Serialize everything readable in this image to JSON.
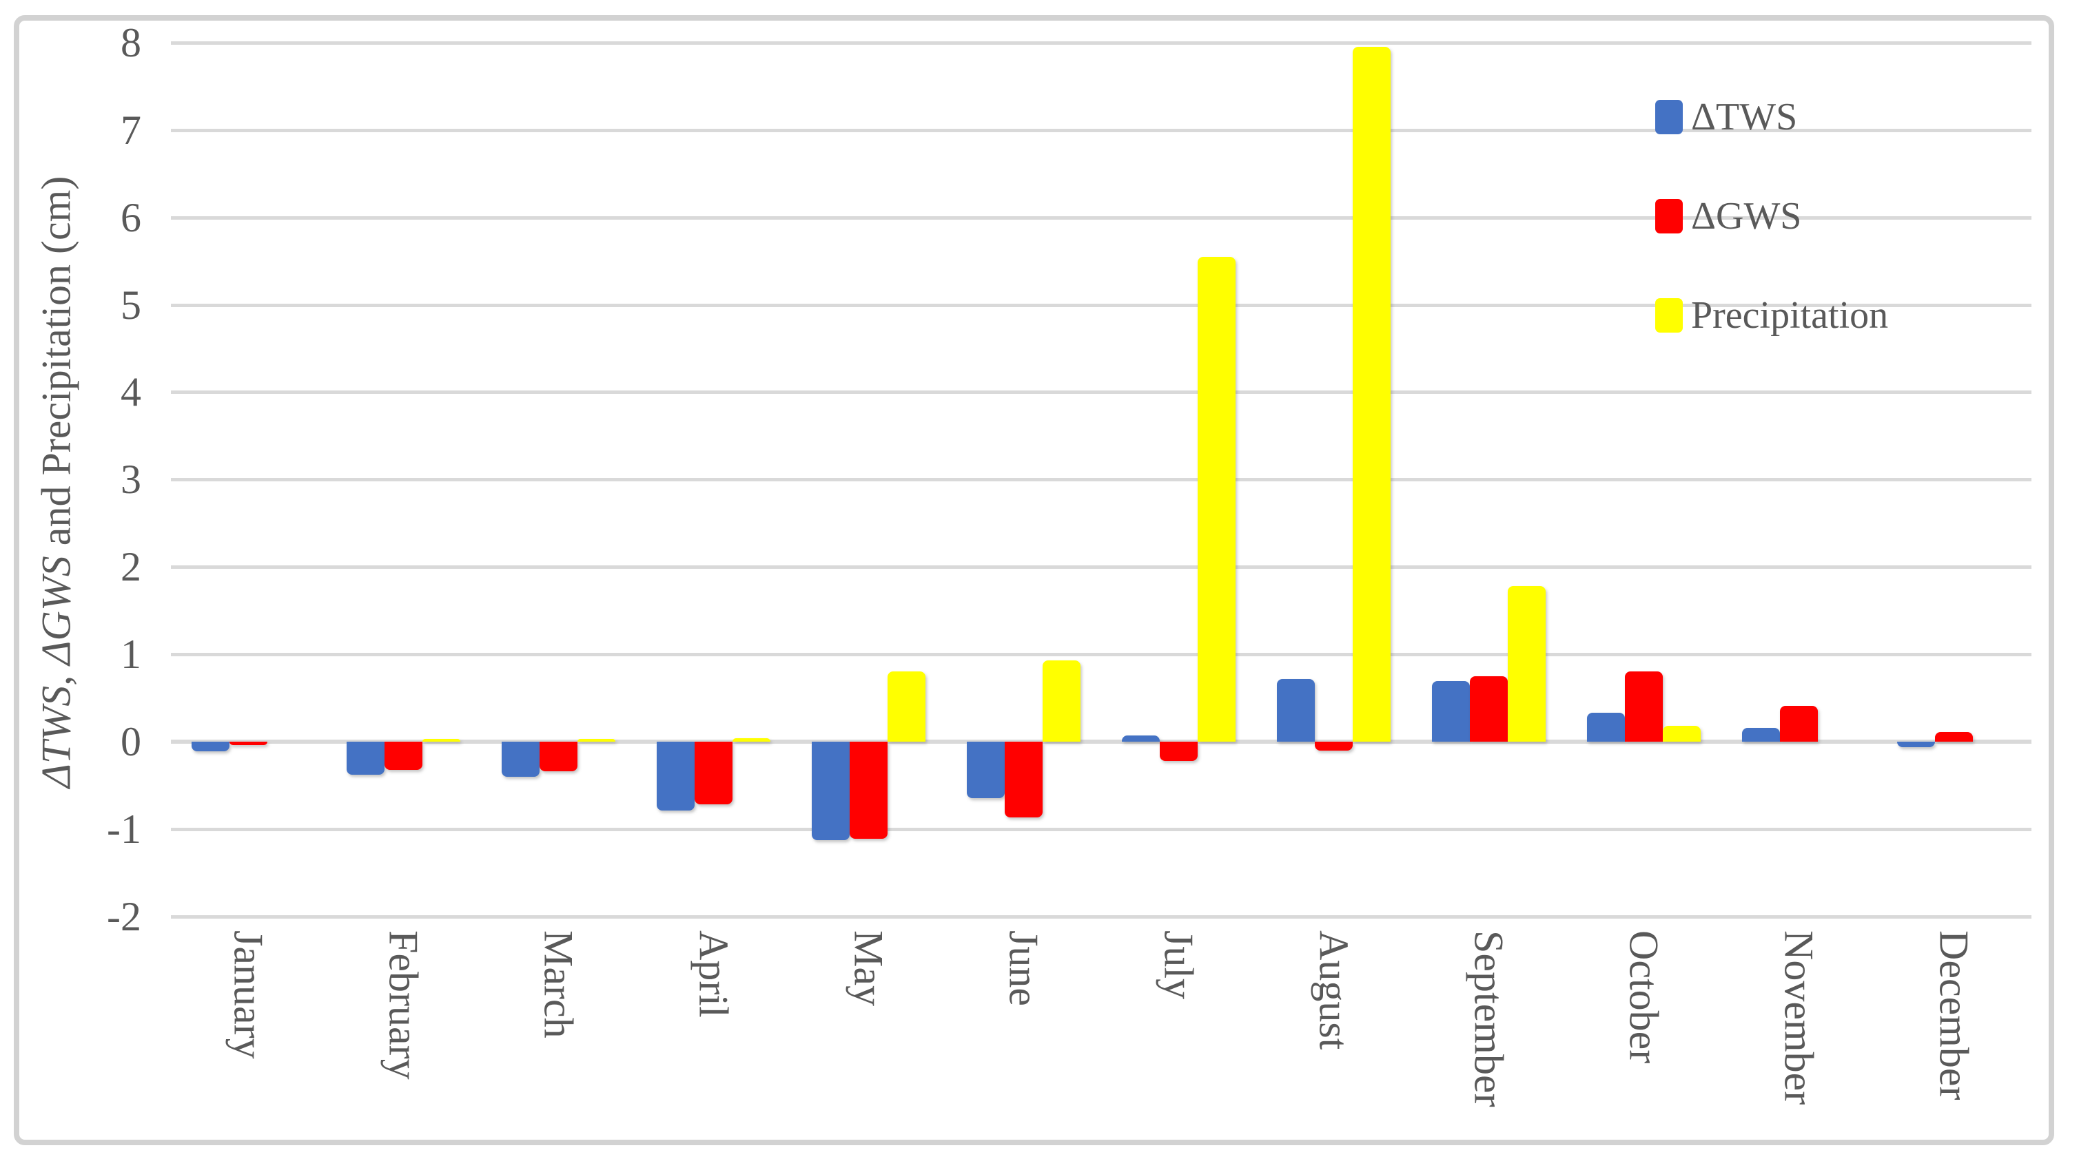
{
  "figure": {
    "y_axis_title_parts": {
      "tws": "ΔTWS",
      "sep": ", ",
      "gws": "ΔGWS",
      "rest": " and Precipitation (cm)"
    },
    "colors": {
      "tws_blue": "#4472C4",
      "gws_red": "#FF0000",
      "precip_yellow": "#FFFF00",
      "gridline_gray": "#D9D9D9",
      "text_gray": "#595959",
      "frame_border": "#D2D2D2"
    }
  },
  "chart_data": {
    "type": "bar",
    "title": "",
    "xlabel": "",
    "ylabel": "ΔTWS, ΔGWS and Precipitation (cm)",
    "ylim": [
      -2,
      8
    ],
    "ytick_step": 1,
    "ytick_labels": [
      "8",
      "7",
      "6",
      "5",
      "4",
      "3",
      "2",
      "1",
      "0",
      "-1",
      "-2"
    ],
    "grid": true,
    "legend_position": "top-right-inside",
    "categories": [
      "January",
      "February",
      "March",
      "April",
      "May",
      "June",
      "July",
      "August",
      "September",
      "October",
      "November",
      "December"
    ],
    "series": [
      {
        "name": "ΔTWS",
        "color": "#4472C4",
        "values": [
          -0.11,
          -0.38,
          -0.4,
          -0.79,
          -1.13,
          -0.65,
          0.07,
          0.72,
          0.69,
          0.33,
          0.16,
          -0.06
        ]
      },
      {
        "name": "ΔGWS",
        "color": "#FF0000",
        "values": [
          -0.04,
          -0.32,
          -0.34,
          -0.72,
          -1.11,
          -0.87,
          -0.22,
          -0.1,
          0.75,
          0.8,
          0.41,
          0.11
        ]
      },
      {
        "name": "Precipitation",
        "color": "#FFFF00",
        "values": [
          0,
          0.03,
          0.03,
          0.04,
          0.8,
          0.93,
          5.55,
          7.95,
          1.78,
          0.18,
          0,
          0
        ]
      }
    ]
  }
}
